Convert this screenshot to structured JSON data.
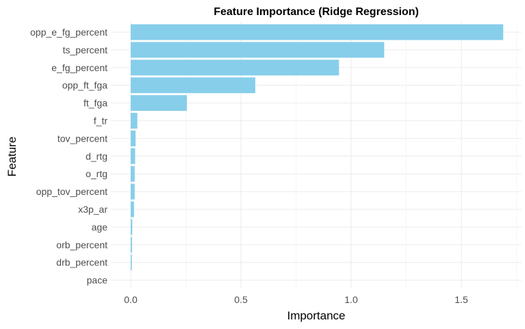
{
  "chart_data": {
    "type": "bar",
    "orientation": "horizontal",
    "title": "Feature Importance (Ridge Regression)",
    "xlabel": "Importance",
    "ylabel": "Feature",
    "categories": [
      "opp_e_fg_percent",
      "ts_percent",
      "e_fg_percent",
      "opp_ft_fga",
      "ft_fga",
      "f_tr",
      "tov_percent",
      "d_rtg",
      "o_rtg",
      "opp_tov_percent",
      "x3p_ar",
      "age",
      "orb_percent",
      "drb_percent",
      "pace"
    ],
    "values": [
      1.69,
      1.15,
      0.945,
      0.565,
      0.255,
      0.03,
      0.022,
      0.02,
      0.018,
      0.018,
      0.015,
      0.007,
      0.006,
      0.005,
      0.0
    ],
    "xticks": [
      "0.0",
      "0.5",
      "1.0",
      "1.5"
    ],
    "xlim": [
      -0.085,
      1.775
    ],
    "bar_color": "#87CEEB",
    "grid": true,
    "legend": "none"
  }
}
